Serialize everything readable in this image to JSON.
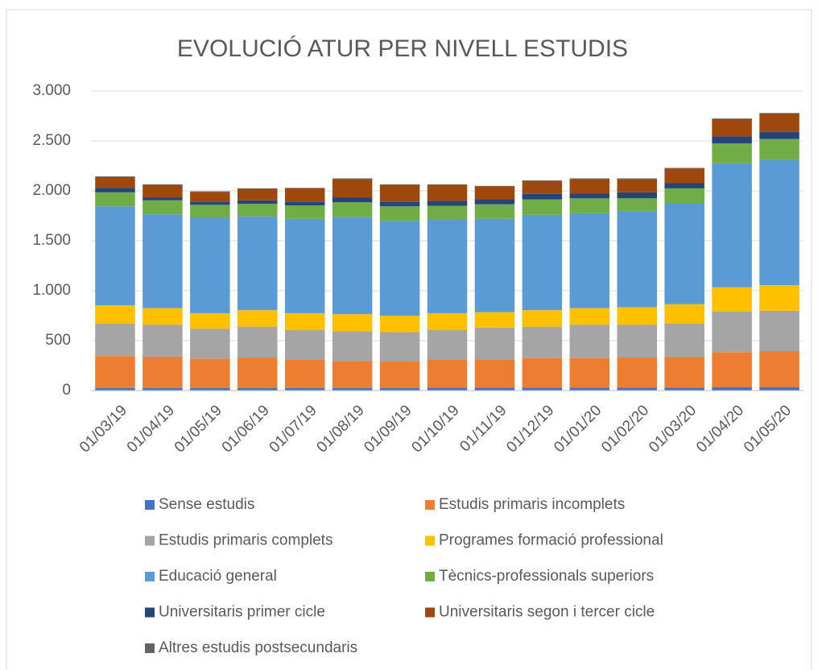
{
  "chart_data": {
    "type": "stacked_bar",
    "title": "EVOLUCIÓ ATUR PER NIVELL ESTUDIS",
    "categories": [
      "01/03/19",
      "01/04/19",
      "01/05/19",
      "01/06/19",
      "01/07/19",
      "01/08/19",
      "01/09/19",
      "01/10/19",
      "01/11/19",
      "01/12/19",
      "01/01/20",
      "01/02/20",
      "01/03/20",
      "01/04/20",
      "01/05/20"
    ],
    "series": [
      {
        "name": "Sense estudis",
        "color": "#4472c4",
        "values": [
          25,
          25,
          25,
          25,
          25,
          25,
          25,
          30,
          30,
          30,
          30,
          30,
          30,
          35,
          35
        ]
      },
      {
        "name": "Estudis primaris incomplets",
        "color": "#ed7d31",
        "values": [
          320,
          315,
          295,
          305,
          285,
          270,
          265,
          280,
          280,
          295,
          295,
          300,
          305,
          350,
          360
        ]
      },
      {
        "name": "Estudis primaris complets",
        "color": "#a5a5a5",
        "values": [
          325,
          320,
          300,
          310,
          295,
          300,
          295,
          295,
          320,
          315,
          335,
          330,
          335,
          405,
          405
        ]
      },
      {
        "name": "Programes formació professional",
        "color": "#ffc000",
        "values": [
          185,
          165,
          155,
          165,
          170,
          170,
          165,
          170,
          155,
          165,
          165,
          175,
          195,
          245,
          255
        ]
      },
      {
        "name": "Educació general",
        "color": "#5b9bd5",
        "values": [
          990,
          940,
          955,
          940,
          945,
          975,
          950,
          935,
          935,
          955,
          950,
          960,
          1010,
          1240,
          1255
        ]
      },
      {
        "name": "Tècnics-professionals superiors",
        "color": "#70ad47",
        "values": [
          140,
          140,
          130,
          125,
          135,
          145,
          145,
          140,
          145,
          155,
          150,
          130,
          150,
          200,
          210
        ]
      },
      {
        "name": "Universitaris primer cicle",
        "color": "#264478",
        "values": [
          45,
          30,
          30,
          35,
          35,
          50,
          45,
          50,
          50,
          55,
          50,
          60,
          55,
          70,
          70
        ]
      },
      {
        "name": "Universitaris segon i tercer cicle",
        "color": "#9e480e",
        "values": [
          110,
          125,
          100,
          115,
          135,
          185,
          170,
          160,
          130,
          130,
          145,
          135,
          145,
          175,
          185
        ]
      },
      {
        "name": "Altres estudis postsecundaris",
        "color": "#636363",
        "values": [
          5,
          5,
          5,
          5,
          5,
          5,
          5,
          5,
          5,
          5,
          5,
          5,
          5,
          5,
          5
        ]
      }
    ],
    "ylim": [
      0,
      3000
    ],
    "yticks": [
      0,
      {
        "value": 500,
        "label": "500"
      },
      {
        "value": 1000,
        "label": "1.000"
      },
      {
        "value": 1500,
        "label": "1.500"
      },
      {
        "value": 2000,
        "label": "2.000"
      },
      {
        "value": 2500,
        "label": "2.500"
      },
      {
        "value": 3000,
        "label": "3.000"
      }
    ],
    "grid": true
  }
}
